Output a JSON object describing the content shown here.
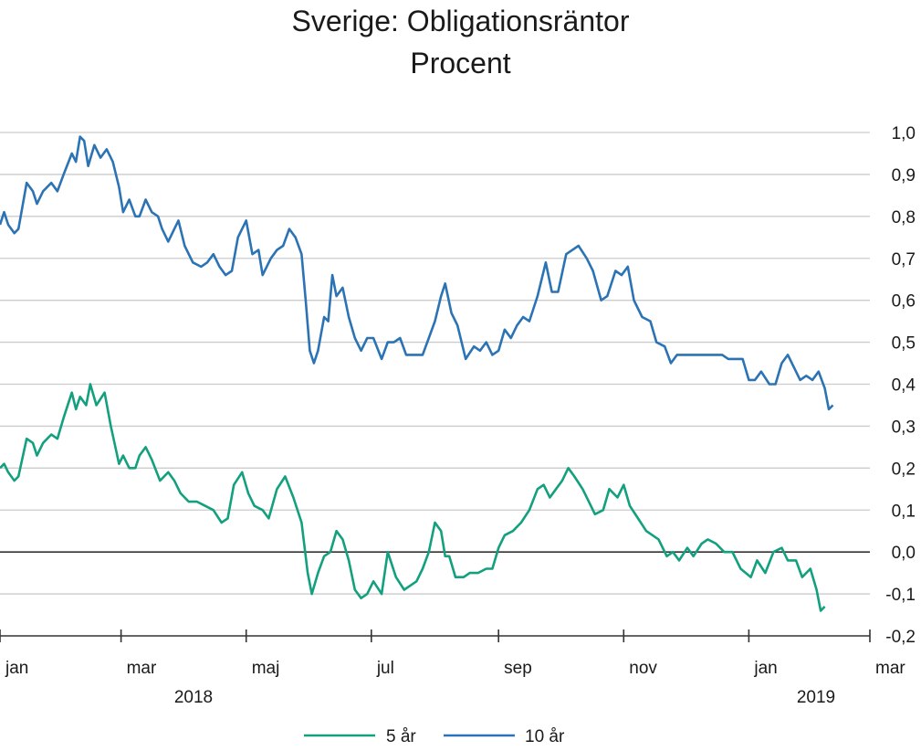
{
  "chart_data": {
    "type": "line",
    "title": "Sverige: Obligationsräntor",
    "subtitle": "Procent",
    "ylim": [
      -0.2,
      1.0
    ],
    "y_ticks": [
      "1,0",
      "0,9",
      "0,8",
      "0,7",
      "0,6",
      "0,5",
      "0,4",
      "0,3",
      "0,2",
      "0,1",
      "0,0",
      "-0,1",
      "-0,2"
    ],
    "y_tick_values": [
      1.0,
      0.9,
      0.8,
      0.7,
      0.6,
      0.5,
      0.4,
      0.3,
      0.2,
      0.1,
      0.0,
      -0.1,
      -0.2
    ],
    "x_months": [
      "jan",
      "mar",
      "maj",
      "jul",
      "sep",
      "nov",
      "jan",
      "mar"
    ],
    "x_years": [
      "2018",
      "2019"
    ],
    "grid": true,
    "zero_line": true,
    "legend_position": "bottom-center",
    "x_start": "2018-01-01",
    "x_end": "2019-03-01",
    "series": [
      {
        "name": "5 år",
        "color": "#13a07e",
        "points": [
          [
            "2018-01-01",
            0.2
          ],
          [
            "2018-01-03",
            0.21
          ],
          [
            "2018-01-05",
            0.19
          ],
          [
            "2018-01-08",
            0.17
          ],
          [
            "2018-01-10",
            0.18
          ],
          [
            "2018-01-14",
            0.27
          ],
          [
            "2018-01-17",
            0.26
          ],
          [
            "2018-01-19",
            0.23
          ],
          [
            "2018-01-22",
            0.26
          ],
          [
            "2018-01-26",
            0.28
          ],
          [
            "2018-01-29",
            0.27
          ],
          [
            "2018-02-01",
            0.32
          ],
          [
            "2018-02-05",
            0.38
          ],
          [
            "2018-02-07",
            0.34
          ],
          [
            "2018-02-09",
            0.37
          ],
          [
            "2018-02-12",
            0.35
          ],
          [
            "2018-02-14",
            0.4
          ],
          [
            "2018-02-17",
            0.35
          ],
          [
            "2018-02-21",
            0.38
          ],
          [
            "2018-02-24",
            0.3
          ],
          [
            "2018-02-28",
            0.21
          ],
          [
            "2018-03-02",
            0.23
          ],
          [
            "2018-03-05",
            0.2
          ],
          [
            "2018-03-08",
            0.2
          ],
          [
            "2018-03-10",
            0.23
          ],
          [
            "2018-03-13",
            0.25
          ],
          [
            "2018-03-16",
            0.22
          ],
          [
            "2018-03-20",
            0.17
          ],
          [
            "2018-03-24",
            0.19
          ],
          [
            "2018-03-27",
            0.17
          ],
          [
            "2018-03-30",
            0.14
          ],
          [
            "2018-04-03",
            0.12
          ],
          [
            "2018-04-07",
            0.12
          ],
          [
            "2018-04-11",
            0.11
          ],
          [
            "2018-04-15",
            0.1
          ],
          [
            "2018-04-19",
            0.07
          ],
          [
            "2018-04-22",
            0.08
          ],
          [
            "2018-04-25",
            0.16
          ],
          [
            "2018-04-29",
            0.19
          ],
          [
            "2018-05-02",
            0.14
          ],
          [
            "2018-05-05",
            0.11
          ],
          [
            "2018-05-09",
            0.1
          ],
          [
            "2018-05-12",
            0.08
          ],
          [
            "2018-05-16",
            0.15
          ],
          [
            "2018-05-20",
            0.18
          ],
          [
            "2018-05-24",
            0.13
          ],
          [
            "2018-05-28",
            0.07
          ],
          [
            "2018-05-31",
            -0.05
          ],
          [
            "2018-06-02",
            -0.1
          ],
          [
            "2018-06-05",
            -0.05
          ],
          [
            "2018-06-08",
            -0.01
          ],
          [
            "2018-06-11",
            0.0
          ],
          [
            "2018-06-14",
            0.05
          ],
          [
            "2018-06-17",
            0.03
          ],
          [
            "2018-06-20",
            -0.02
          ],
          [
            "2018-06-23",
            -0.09
          ],
          [
            "2018-06-26",
            -0.11
          ],
          [
            "2018-06-29",
            -0.1
          ],
          [
            "2018-07-02",
            -0.07
          ],
          [
            "2018-07-06",
            -0.1
          ],
          [
            "2018-07-09",
            0.0
          ],
          [
            "2018-07-13",
            -0.06
          ],
          [
            "2018-07-17",
            -0.09
          ],
          [
            "2018-07-20",
            -0.08
          ],
          [
            "2018-07-23",
            -0.07
          ],
          [
            "2018-07-26",
            -0.04
          ],
          [
            "2018-07-29",
            0.0
          ],
          [
            "2018-08-01",
            0.07
          ],
          [
            "2018-08-04",
            0.05
          ],
          [
            "2018-08-06",
            -0.01
          ],
          [
            "2018-08-08",
            -0.01
          ],
          [
            "2018-08-11",
            -0.06
          ],
          [
            "2018-08-15",
            -0.06
          ],
          [
            "2018-08-18",
            -0.05
          ],
          [
            "2018-08-22",
            -0.05
          ],
          [
            "2018-08-26",
            -0.04
          ],
          [
            "2018-08-29",
            -0.04
          ],
          [
            "2018-09-01",
            0.01
          ],
          [
            "2018-09-04",
            0.04
          ],
          [
            "2018-09-08",
            0.05
          ],
          [
            "2018-09-12",
            0.07
          ],
          [
            "2018-09-16",
            0.1
          ],
          [
            "2018-09-20",
            0.15
          ],
          [
            "2018-09-23",
            0.16
          ],
          [
            "2018-09-26",
            0.13
          ],
          [
            "2018-09-29",
            0.15
          ],
          [
            "2018-10-02",
            0.17
          ],
          [
            "2018-10-05",
            0.2
          ],
          [
            "2018-10-08",
            0.18
          ],
          [
            "2018-10-12",
            0.15
          ],
          [
            "2018-10-15",
            0.12
          ],
          [
            "2018-10-18",
            0.09
          ],
          [
            "2018-10-22",
            0.1
          ],
          [
            "2018-10-25",
            0.15
          ],
          [
            "2018-10-29",
            0.13
          ],
          [
            "2018-11-01",
            0.16
          ],
          [
            "2018-11-04",
            0.11
          ],
          [
            "2018-11-08",
            0.08
          ],
          [
            "2018-11-12",
            0.05
          ],
          [
            "2018-11-15",
            0.04
          ],
          [
            "2018-11-18",
            0.03
          ],
          [
            "2018-11-22",
            -0.01
          ],
          [
            "2018-11-25",
            0.0
          ],
          [
            "2018-11-28",
            -0.02
          ],
          [
            "2018-12-02",
            0.01
          ],
          [
            "2018-12-05",
            -0.01
          ],
          [
            "2018-12-09",
            0.02
          ],
          [
            "2018-12-12",
            0.03
          ],
          [
            "2018-12-16",
            0.02
          ],
          [
            "2018-12-20",
            0.0
          ],
          [
            "2018-12-24",
            0.0
          ],
          [
            "2018-12-28",
            -0.04
          ],
          [
            "2019-01-02",
            -0.06
          ],
          [
            "2019-01-05",
            -0.02
          ],
          [
            "2019-01-09",
            -0.05
          ],
          [
            "2019-01-13",
            0.0
          ],
          [
            "2019-01-17",
            0.01
          ],
          [
            "2019-01-20",
            -0.02
          ],
          [
            "2019-01-24",
            -0.02
          ],
          [
            "2019-01-27",
            -0.06
          ],
          [
            "2019-01-31",
            -0.04
          ],
          [
            "2019-02-03",
            -0.09
          ],
          [
            "2019-02-05",
            -0.14
          ],
          [
            "2019-02-07",
            -0.13
          ]
        ]
      },
      {
        "name": "10 år",
        "color": "#2b73b4",
        "points": [
          [
            "2018-01-01",
            0.78
          ],
          [
            "2018-01-03",
            0.81
          ],
          [
            "2018-01-05",
            0.78
          ],
          [
            "2018-01-08",
            0.76
          ],
          [
            "2018-01-10",
            0.77
          ],
          [
            "2018-01-14",
            0.88
          ],
          [
            "2018-01-17",
            0.86
          ],
          [
            "2018-01-19",
            0.83
          ],
          [
            "2018-01-22",
            0.86
          ],
          [
            "2018-01-26",
            0.88
          ],
          [
            "2018-01-29",
            0.86
          ],
          [
            "2018-02-01",
            0.9
          ],
          [
            "2018-02-05",
            0.95
          ],
          [
            "2018-02-07",
            0.93
          ],
          [
            "2018-02-09",
            0.99
          ],
          [
            "2018-02-11",
            0.98
          ],
          [
            "2018-02-13",
            0.92
          ],
          [
            "2018-02-16",
            0.97
          ],
          [
            "2018-02-19",
            0.94
          ],
          [
            "2018-02-22",
            0.96
          ],
          [
            "2018-02-25",
            0.93
          ],
          [
            "2018-02-28",
            0.87
          ],
          [
            "2018-03-02",
            0.81
          ],
          [
            "2018-03-05",
            0.84
          ],
          [
            "2018-03-08",
            0.8
          ],
          [
            "2018-03-10",
            0.8
          ],
          [
            "2018-03-13",
            0.84
          ],
          [
            "2018-03-16",
            0.81
          ],
          [
            "2018-03-19",
            0.8
          ],
          [
            "2018-03-21",
            0.77
          ],
          [
            "2018-03-24",
            0.74
          ],
          [
            "2018-03-27",
            0.77
          ],
          [
            "2018-03-29",
            0.79
          ],
          [
            "2018-04-01",
            0.73
          ],
          [
            "2018-04-05",
            0.69
          ],
          [
            "2018-04-09",
            0.68
          ],
          [
            "2018-04-12",
            0.69
          ],
          [
            "2018-04-15",
            0.71
          ],
          [
            "2018-04-18",
            0.68
          ],
          [
            "2018-04-21",
            0.66
          ],
          [
            "2018-04-24",
            0.67
          ],
          [
            "2018-04-27",
            0.75
          ],
          [
            "2018-05-01",
            0.79
          ],
          [
            "2018-05-04",
            0.71
          ],
          [
            "2018-05-07",
            0.72
          ],
          [
            "2018-05-09",
            0.66
          ],
          [
            "2018-05-13",
            0.7
          ],
          [
            "2018-05-16",
            0.72
          ],
          [
            "2018-05-19",
            0.73
          ],
          [
            "2018-05-22",
            0.77
          ],
          [
            "2018-05-25",
            0.75
          ],
          [
            "2018-05-28",
            0.71
          ],
          [
            "2018-05-30",
            0.6
          ],
          [
            "2018-06-01",
            0.48
          ],
          [
            "2018-06-03",
            0.45
          ],
          [
            "2018-06-05",
            0.48
          ],
          [
            "2018-06-08",
            0.56
          ],
          [
            "2018-06-10",
            0.55
          ],
          [
            "2018-06-12",
            0.66
          ],
          [
            "2018-06-14",
            0.61
          ],
          [
            "2018-06-17",
            0.63
          ],
          [
            "2018-06-20",
            0.56
          ],
          [
            "2018-06-23",
            0.51
          ],
          [
            "2018-06-26",
            0.48
          ],
          [
            "2018-06-29",
            0.51
          ],
          [
            "2018-07-02",
            0.51
          ],
          [
            "2018-07-06",
            0.46
          ],
          [
            "2018-07-09",
            0.5
          ],
          [
            "2018-07-12",
            0.5
          ],
          [
            "2018-07-15",
            0.51
          ],
          [
            "2018-07-18",
            0.47
          ],
          [
            "2018-07-22",
            0.47
          ],
          [
            "2018-07-26",
            0.47
          ],
          [
            "2018-07-29",
            0.51
          ],
          [
            "2018-08-01",
            0.55
          ],
          [
            "2018-08-04",
            0.61
          ],
          [
            "2018-08-06",
            0.64
          ],
          [
            "2018-08-09",
            0.57
          ],
          [
            "2018-08-12",
            0.54
          ],
          [
            "2018-08-16",
            0.46
          ],
          [
            "2018-08-20",
            0.49
          ],
          [
            "2018-08-23",
            0.48
          ],
          [
            "2018-08-26",
            0.5
          ],
          [
            "2018-08-29",
            0.47
          ],
          [
            "2018-09-01",
            0.48
          ],
          [
            "2018-09-04",
            0.53
          ],
          [
            "2018-09-07",
            0.51
          ],
          [
            "2018-09-10",
            0.54
          ],
          [
            "2018-09-13",
            0.56
          ],
          [
            "2018-09-16",
            0.55
          ],
          [
            "2018-09-20",
            0.61
          ],
          [
            "2018-09-24",
            0.69
          ],
          [
            "2018-09-27",
            0.62
          ],
          [
            "2018-09-30",
            0.62
          ],
          [
            "2018-10-04",
            0.71
          ],
          [
            "2018-10-07",
            0.72
          ],
          [
            "2018-10-10",
            0.73
          ],
          [
            "2018-10-14",
            0.7
          ],
          [
            "2018-10-17",
            0.67
          ],
          [
            "2018-10-21",
            0.6
          ],
          [
            "2018-10-24",
            0.61
          ],
          [
            "2018-10-28",
            0.67
          ],
          [
            "2018-10-31",
            0.66
          ],
          [
            "2018-11-03",
            0.68
          ],
          [
            "2018-11-06",
            0.6
          ],
          [
            "2018-11-10",
            0.56
          ],
          [
            "2018-11-14",
            0.55
          ],
          [
            "2018-11-17",
            0.5
          ],
          [
            "2018-11-21",
            0.49
          ],
          [
            "2018-11-24",
            0.45
          ],
          [
            "2018-11-27",
            0.47
          ],
          [
            "2018-12-01",
            0.47
          ],
          [
            "2018-12-04",
            0.47
          ],
          [
            "2018-12-08",
            0.47
          ],
          [
            "2018-12-12",
            0.47
          ],
          [
            "2018-12-16",
            0.47
          ],
          [
            "2018-12-19",
            0.47
          ],
          [
            "2018-12-22",
            0.46
          ],
          [
            "2018-12-26",
            0.46
          ],
          [
            "2018-12-29",
            0.46
          ],
          [
            "2019-01-01",
            0.41
          ],
          [
            "2019-01-04",
            0.41
          ],
          [
            "2019-01-07",
            0.43
          ],
          [
            "2019-01-11",
            0.4
          ],
          [
            "2019-01-14",
            0.4
          ],
          [
            "2019-01-17",
            0.45
          ],
          [
            "2019-01-20",
            0.47
          ],
          [
            "2019-01-23",
            0.44
          ],
          [
            "2019-01-26",
            0.41
          ],
          [
            "2019-01-29",
            0.42
          ],
          [
            "2019-02-01",
            0.41
          ],
          [
            "2019-02-04",
            0.43
          ],
          [
            "2019-02-07",
            0.39
          ],
          [
            "2019-02-09",
            0.34
          ],
          [
            "2019-02-11",
            0.35
          ]
        ]
      }
    ]
  }
}
